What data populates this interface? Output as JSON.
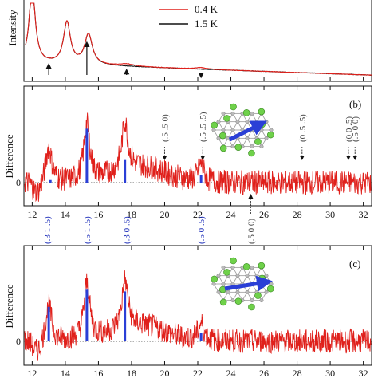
{
  "chart_data": [
    {
      "type": "line",
      "panel": "a",
      "ylabel": "Intensity",
      "xlim": [
        11.5,
        32.5
      ],
      "legend": {
        "placement": "top-right",
        "entries": [
          {
            "name": "0.4 K",
            "color": "#e0201b"
          },
          {
            "name": "1.5 K",
            "color": "#111111"
          }
        ]
      },
      "peaks": [
        {
          "x": 12.0,
          "height": 1.0,
          "width": 0.22
        },
        {
          "x": 14.1,
          "height": 0.55,
          "width": 0.25
        },
        {
          "x": 15.4,
          "height": 0.4,
          "width": 0.28
        }
      ],
      "arrows_x": [
        13.0,
        15.3,
        17.7,
        22.2
      ]
    },
    {
      "type": "line",
      "panel": "b",
      "panel_label": "(b)",
      "ylabel": "Difference",
      "ytick_label": "0",
      "xlim": [
        11.5,
        32.5
      ],
      "xticks": [
        12,
        14,
        16,
        18,
        20,
        22,
        24,
        26,
        28,
        30,
        32
      ],
      "peaks": [
        {
          "x": 13.0,
          "height": 0.4
        },
        {
          "x": 15.3,
          "height": 0.65
        },
        {
          "x": 17.6,
          "height": 0.55
        },
        {
          "x": 22.2,
          "height": 0.2
        }
      ],
      "bars": [
        {
          "x": 13.1,
          "value": 0.03
        },
        {
          "x": 15.3,
          "value": 0.62
        },
        {
          "x": 17.6,
          "value": 0.26
        },
        {
          "x": 22.2,
          "value": 0.09
        }
      ],
      "forbidden_labels": [
        {
          "x": 20.0,
          "text": "(.5 .5 0)"
        },
        {
          "x": 22.3,
          "text": "(.5 .5 .5)"
        },
        {
          "x": 28.3,
          "text": "(0 .5 .5)"
        },
        {
          "x": 31.1,
          "text": "(0 0 .5)"
        },
        {
          "x": 31.5,
          "text": "(.5 0 0)"
        }
      ],
      "below_label": {
        "x": 25.2,
        "text": "(.5 0 0)"
      },
      "index_labels": [
        {
          "x": 12.9,
          "text": "(.3 1 .5)"
        },
        {
          "x": 15.3,
          "text": "(.5 1 .5)"
        },
        {
          "x": 17.7,
          "text": "(.3 0 .5)"
        },
        {
          "x": 22.2,
          "text": "(.5 0 .5)"
        }
      ]
    },
    {
      "type": "line",
      "panel": "c",
      "panel_label": "(c)",
      "ylabel": "Difference",
      "ytick_label": "0",
      "xlim": [
        11.5,
        32.5
      ],
      "xticks": [
        12,
        14,
        16,
        18,
        20,
        22,
        24,
        26,
        28,
        30,
        32
      ],
      "peaks": [
        {
          "x": 13.0,
          "height": 0.4
        },
        {
          "x": 15.3,
          "height": 0.65
        },
        {
          "x": 17.6,
          "height": 0.55
        },
        {
          "x": 22.2,
          "height": 0.2
        }
      ],
      "bars": [
        {
          "x": 13.0,
          "value": 0.4
        },
        {
          "x": 15.3,
          "value": 0.6
        },
        {
          "x": 17.6,
          "value": 0.58
        },
        {
          "x": 22.2,
          "value": 0.1
        }
      ]
    }
  ]
}
